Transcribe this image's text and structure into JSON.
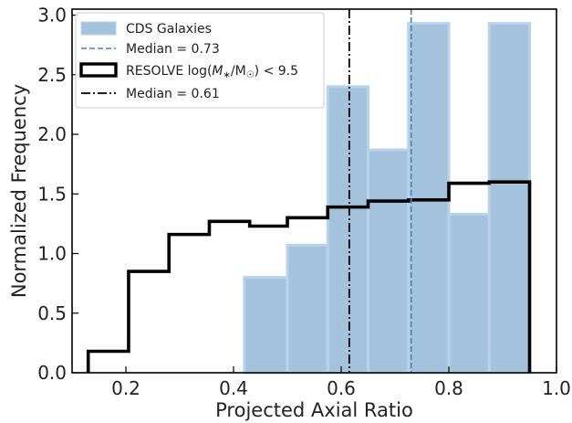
{
  "chart_data": {
    "type": "histogram",
    "xlabel": "Projected Axial Ratio",
    "ylabel": "Normalized Frequency",
    "xlim": [
      0.1,
      1.0
    ],
    "ylim": [
      0.0,
      3.05
    ],
    "xticks": [
      0.2,
      0.4,
      0.6,
      0.8,
      1.0
    ],
    "xtick_labels": [
      "0.2",
      "0.4",
      "0.6",
      "0.8",
      "1.0"
    ],
    "yticks": [
      0.0,
      0.5,
      1.0,
      1.5,
      2.0,
      2.5,
      3.0
    ],
    "ytick_labels": [
      "0.0",
      "0.5",
      "1.0",
      "1.5",
      "2.0",
      "2.5",
      "3.0"
    ],
    "grid": false,
    "legend_position": "top-left",
    "series": [
      {
        "name": "CDS Galaxies",
        "kind": "filled-histogram",
        "color": "#a5c2dd",
        "edge_color": "#b9d2e9",
        "bin_edges": [
          0.42,
          0.5,
          0.575,
          0.65,
          0.725,
          0.8,
          0.875,
          0.95
        ],
        "values": [
          0.8,
          1.07,
          2.4,
          1.87,
          2.93,
          1.33,
          2.93
        ]
      },
      {
        "name": "Median = 0.73",
        "kind": "vline",
        "x": 0.73,
        "style": "dashed",
        "color": "#4a7fb5"
      },
      {
        "name": "RESOLVE log(M∗/M☉) < 9.5",
        "name_parts": [
          "RESOLVE log(",
          "M",
          "∗",
          "/M",
          "☉",
          ") < 9.5"
        ],
        "kind": "step-histogram",
        "color": "#000000",
        "bin_edges": [
          0.13,
          0.205,
          0.28,
          0.355,
          0.43,
          0.5,
          0.575,
          0.65,
          0.725,
          0.8,
          0.875,
          0.95
        ],
        "values": [
          0.18,
          0.85,
          1.16,
          1.27,
          1.23,
          1.3,
          1.39,
          1.44,
          1.45,
          1.59,
          1.6
        ]
      },
      {
        "name": "Median = 0.61",
        "kind": "vline",
        "x": 0.615,
        "style": "dashdot",
        "color": "#000000"
      }
    ]
  }
}
